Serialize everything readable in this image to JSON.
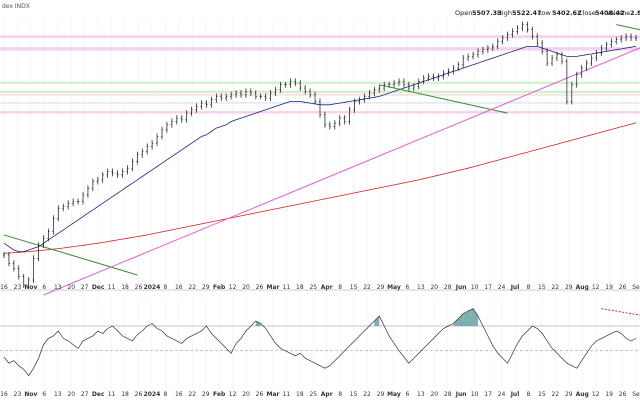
{
  "chart_data": {
    "type": "line",
    "title": "dex INDX",
    "header": {
      "open_label": "Open",
      "open": "5507.33",
      "high_label": "High",
      "high": "5522.47",
      "low_label": "Low",
      "low": "5402.62",
      "close_label": "Close",
      "close": "5408.42",
      "volume_label": "Volume",
      "volume": "2.8"
    },
    "x_ticks": [
      "16",
      "23",
      "Nov",
      "6",
      "13",
      "20",
      "27",
      "Dec",
      "11",
      "18",
      "26",
      "2024",
      "8",
      "16",
      "22",
      "29",
      "Feb",
      "12",
      "20",
      "26",
      "Mar",
      "11",
      "18",
      "25",
      "Apr",
      "8",
      "15",
      "22",
      "29",
      "May",
      "6",
      "13",
      "20",
      "28",
      "Jun",
      "10",
      "17",
      "24",
      "Jul",
      "8",
      "15",
      "22",
      "29",
      "Aug",
      "12",
      "19",
      "26",
      "Se"
    ],
    "x_tick_bold": [
      "Nov",
      "Dec",
      "2024",
      "Feb",
      "Mar",
      "Apr",
      "May",
      "Jun",
      "Jul",
      "Aug"
    ],
    "price_series": {
      "x": [
        0,
        1,
        2,
        3,
        4,
        5,
        6,
        7,
        8,
        9,
        10,
        11,
        12,
        13,
        14,
        15,
        16,
        17,
        18,
        19,
        20,
        21,
        22,
        23,
        24,
        25,
        26,
        27,
        28,
        29,
        30,
        31,
        32,
        33,
        34,
        35,
        36,
        37,
        38,
        39,
        40,
        41,
        42,
        43,
        44,
        45,
        46,
        47,
        48,
        49,
        50,
        51,
        52,
        53,
        54,
        55,
        56,
        57,
        58,
        59,
        60,
        61,
        62,
        63,
        64,
        65,
        66,
        67,
        68,
        69,
        70,
        71,
        72,
        73,
        74,
        75,
        76,
        77,
        78,
        79,
        80,
        81,
        82,
        83,
        84,
        85,
        86,
        87,
        88,
        89,
        90,
        91,
        92,
        93,
        94,
        95,
        96,
        97,
        98,
        99,
        100,
        101,
        102,
        103,
        104,
        105,
        106,
        107,
        108,
        109,
        110,
        111,
        112,
        113,
        114,
        115,
        116,
        117,
        118,
        119,
        120,
        121,
        122,
        123,
        124,
        125,
        126,
        127,
        128
      ],
      "values": [
        4280,
        4230,
        4200,
        4150,
        4100,
        4130,
        4260,
        4340,
        4380,
        4420,
        4500,
        4560,
        4570,
        4590,
        4600,
        4600,
        4640,
        4680,
        4720,
        4730,
        4760,
        4780,
        4770,
        4760,
        4780,
        4800,
        4840,
        4880,
        4900,
        4930,
        4950,
        4990,
        5030,
        5060,
        5080,
        5100,
        5090,
        5130,
        5150,
        5170,
        5190,
        5180,
        5210,
        5230,
        5220,
        5230,
        5240,
        5250,
        5240,
        5260,
        5250,
        5230,
        5230,
        5220,
        5250,
        5270,
        5300,
        5300,
        5320,
        5310,
        5280,
        5260,
        5240,
        5200,
        5120,
        5060,
        5050,
        5070,
        5100,
        5080,
        5150,
        5200,
        5210,
        5230,
        5250,
        5270,
        5280,
        5300,
        5300,
        5310,
        5320,
        5300,
        5280,
        5290,
        5320,
        5340,
        5350,
        5340,
        5350,
        5370,
        5380,
        5400,
        5420,
        5460,
        5470,
        5480,
        5500,
        5510,
        5520,
        5530,
        5560,
        5580,
        5600,
        5620,
        5640,
        5660,
        5630,
        5590,
        5550,
        5500,
        5430,
        5460,
        5480,
        5440,
        5200,
        5300,
        5360,
        5400,
        5430,
        5460,
        5490,
        5520,
        5540,
        5560,
        5570,
        5580,
        5590,
        5580,
        5580
      ]
    },
    "ma50_values": [
      4350,
      4330,
      4310,
      4300,
      4300,
      4310,
      4320,
      4330,
      4350,
      4370,
      4390,
      4410,
      4430,
      4450,
      4470,
      4490,
      4510,
      4530,
      4550,
      4570,
      4590,
      4610,
      4630,
      4650,
      4670,
      4690,
      4710,
      4730,
      4750,
      4770,
      4790,
      4810,
      4830,
      4850,
      4870,
      4890,
      4910,
      4930,
      4950,
      4970,
      4990,
      5000,
      5020,
      5040,
      5050,
      5060,
      5080,
      5090,
      5100,
      5110,
      5120,
      5130,
      5140,
      5150,
      5160,
      5170,
      5180,
      5190,
      5200,
      5200,
      5200,
      5195,
      5190,
      5185,
      5180,
      5180,
      5180,
      5185,
      5190,
      5195,
      5200,
      5205,
      5210,
      5215,
      5220,
      5225,
      5230,
      5240,
      5250,
      5260,
      5270,
      5280,
      5290,
      5300,
      5310,
      5320,
      5330,
      5340,
      5350,
      5360,
      5370,
      5380,
      5390,
      5400,
      5410,
      5420,
      5430,
      5440,
      5450,
      5460,
      5470,
      5480,
      5490,
      5500,
      5510,
      5520,
      5530,
      5530,
      5530,
      5520,
      5510,
      5500,
      5490,
      5480,
      5470,
      5470,
      5470,
      5475,
      5480,
      5485,
      5490,
      5495,
      5500,
      5505,
      5510,
      5515,
      5520,
      5525,
      5530
    ],
    "ma200_values": [
      4290,
      4292,
      4294,
      4296,
      4298,
      4300,
      4303,
      4306,
      4309,
      4312,
      4315,
      4318,
      4322,
      4326,
      4330,
      4334,
      4338,
      4342,
      4346,
      4350,
      4355,
      4360,
      4365,
      4370,
      4375,
      4380,
      4385,
      4390,
      4395,
      4400,
      4406,
      4412,
      4418,
      4424,
      4430,
      4436,
      4442,
      4448,
      4454,
      4460,
      4466,
      4472,
      4478,
      4484,
      4490,
      4496,
      4502,
      4508,
      4514,
      4520,
      4526,
      4532,
      4538,
      4544,
      4550,
      4556,
      4562,
      4568,
      4574,
      4580,
      4586,
      4592,
      4598,
      4604,
      4610,
      4616,
      4622,
      4628,
      4634,
      4640,
      4646,
      4652,
      4658,
      4664,
      4670,
      4676,
      4682,
      4688,
      4694,
      4700,
      4706,
      4712,
      4718,
      4724,
      4730,
      4737,
      4744,
      4751,
      4758,
      4765,
      4772,
      4779,
      4786,
      4793,
      4800,
      4808,
      4816,
      4824,
      4832,
      4840,
      4848,
      4856,
      4864,
      4872,
      4880,
      4888,
      4896,
      4904,
      4912,
      4920,
      4928,
      4936,
      4944,
      4952,
      4960,
      4968,
      4976,
      4984,
      4992,
      5000,
      5008,
      5016,
      5024,
      5032,
      5040,
      5048,
      5056,
      5064,
      5072
    ],
    "horizontal_zones": [
      {
        "y_low": 5250,
        "y_high": 5265,
        "color": "#c8f0c0"
      },
      {
        "y_low": 5305,
        "y_high": 5318,
        "color": "#c8f0c0"
      },
      {
        "y_low": 5505,
        "y_high": 5525,
        "color": "#f5c8ec"
      },
      {
        "y_low": 5580,
        "y_high": 5596,
        "color": "#f5c8ec"
      },
      {
        "y_low": 5128,
        "y_high": 5142,
        "color": "#f5c8ec"
      },
      {
        "y_low": 5188,
        "y_high": 5194,
        "color": "#ccd0ec"
      },
      {
        "y_low": 5238,
        "y_high": 5242,
        "color": "#f0c8c8"
      }
    ],
    "trendlines": [
      {
        "x1": 0,
        "y1": 4400,
        "x2": 27,
        "y2": 4160,
        "color": "#3a8a30"
      },
      {
        "x1": 76,
        "y1": 5300,
        "x2": 102,
        "y2": 5130,
        "color": "#3a8a30"
      },
      {
        "x1": 124,
        "y1": 5660,
        "x2": 148,
        "y2": 5510,
        "color": "#3a8a30"
      },
      {
        "x1": 8,
        "y1": 4040,
        "x2": 132,
        "y2": 5560,
        "color": "#e060d0"
      }
    ],
    "momentum_series": {
      "values": [
        45,
        40,
        42,
        38,
        35,
        30,
        36,
        44,
        55,
        60,
        62,
        66,
        60,
        58,
        55,
        52,
        58,
        60,
        62,
        66,
        64,
        68,
        70,
        66,
        62,
        60,
        58,
        63,
        66,
        70,
        72,
        68,
        66,
        62,
        60,
        58,
        56,
        60,
        62,
        64,
        66,
        70,
        64,
        60,
        56,
        52,
        48,
        56,
        60,
        66,
        70,
        74,
        72,
        68,
        62,
        56,
        52,
        50,
        48,
        46,
        48,
        44,
        42,
        40,
        38,
        36,
        38,
        42,
        46,
        50,
        54,
        58,
        62,
        66,
        70,
        74,
        78,
        70,
        62,
        56,
        50,
        45,
        40,
        44,
        48,
        52,
        56,
        60,
        64,
        68,
        70,
        72,
        76,
        80,
        82,
        84,
        78,
        70,
        62,
        54,
        48,
        44,
        40,
        48,
        56,
        62,
        66,
        70,
        68,
        64,
        58,
        52,
        48,
        44,
        40,
        38,
        36,
        42,
        48,
        54,
        58,
        60,
        62,
        64,
        66,
        64,
        60,
        58,
        60
      ],
      "overbought": 70,
      "midline": 50
    },
    "momentum_divergence": {
      "x1": 121,
      "y1": 84,
      "x2": 142,
      "y2": 70,
      "color": "#d83030"
    }
  }
}
